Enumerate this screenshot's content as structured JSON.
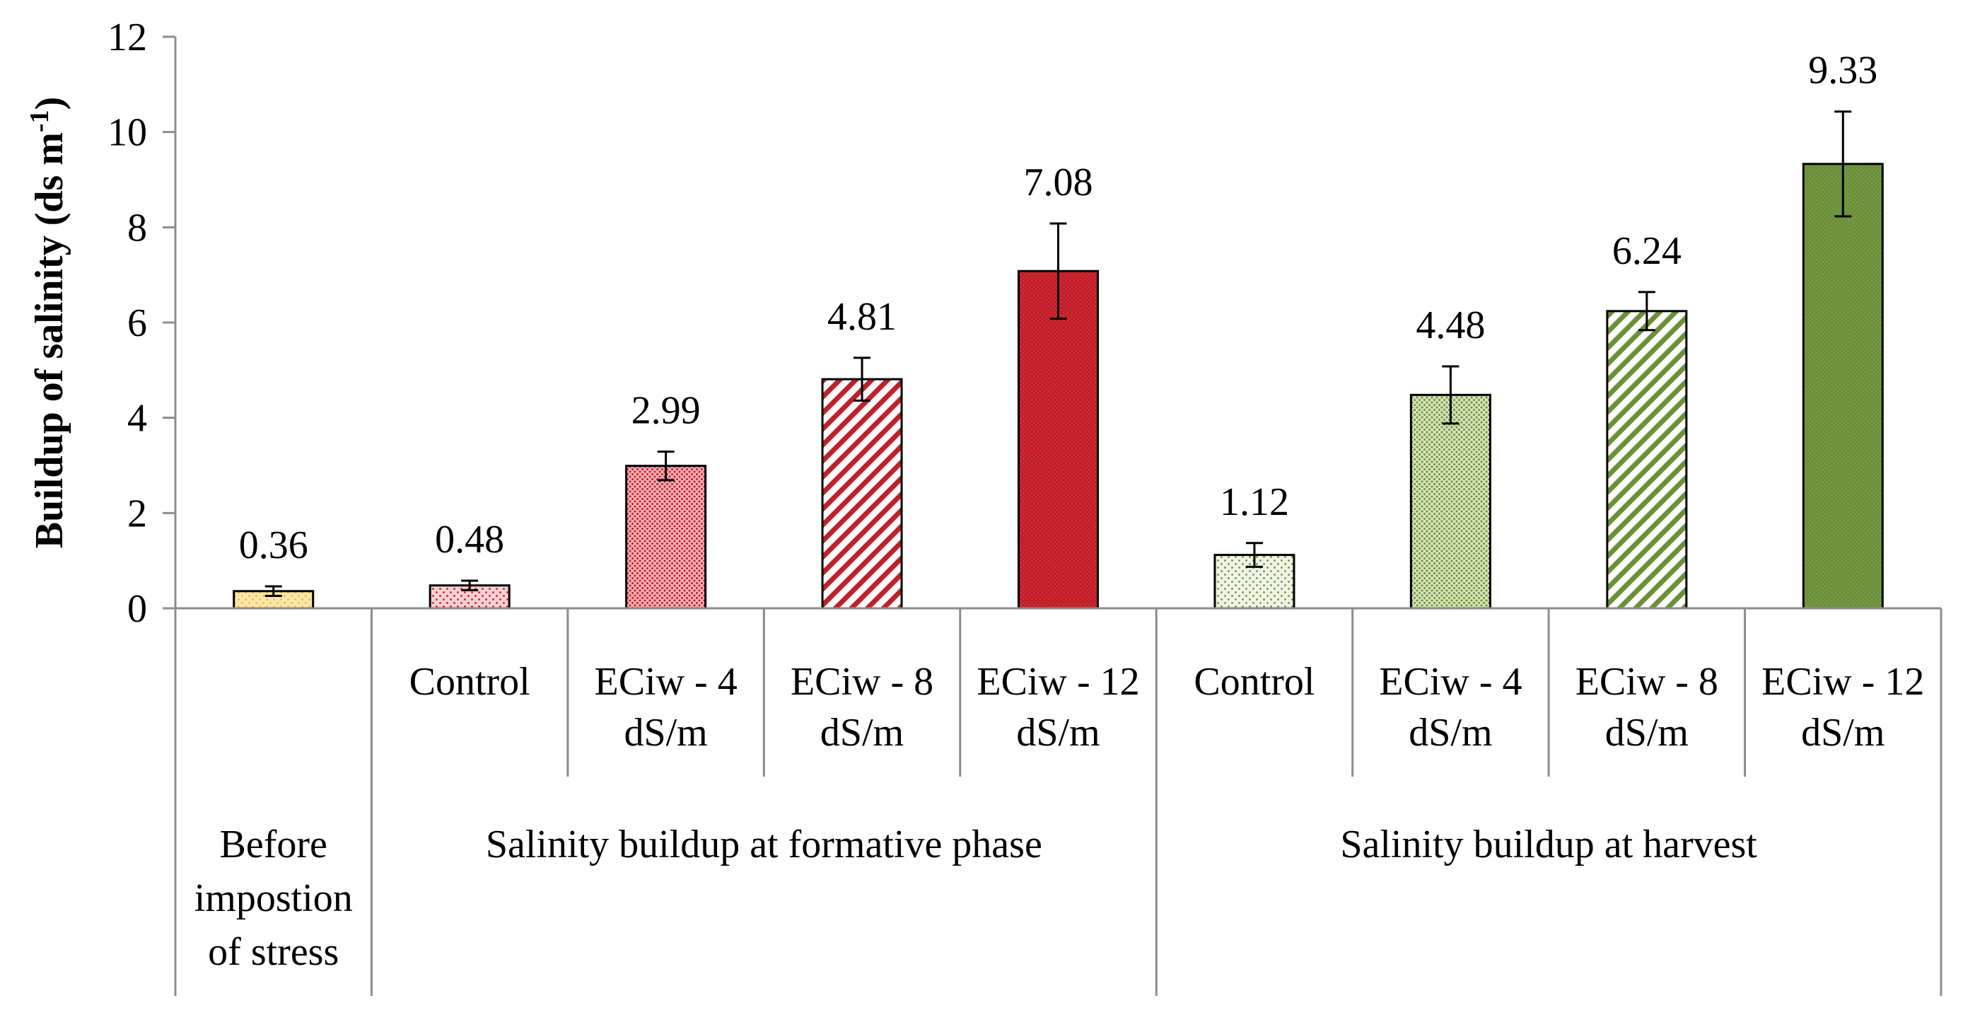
{
  "chart_data": {
    "type": "bar",
    "title": "",
    "xlabel": "",
    "ylabel": "Buildup of salinity (ds m",
    "ylabel_sup": "-1",
    "ylabel_close": ")",
    "ylim": [
      0,
      12
    ],
    "yticks": [
      0,
      2,
      4,
      6,
      8,
      10,
      12
    ],
    "grid": false,
    "bars": [
      {
        "label_lines": [],
        "value": 0.36,
        "value_label": "0.36",
        "err": 0.1,
        "color": "#e8b84a",
        "fill": "#fbe6a8",
        "pattern": "dots-sparse"
      },
      {
        "label_lines": [
          "Control"
        ],
        "value": 0.48,
        "value_label": "0.48",
        "err": 0.1,
        "color": "#c0202a",
        "fill": "#f6d0d2",
        "pattern": "dots-sparse"
      },
      {
        "label_lines": [
          "ECiw - 4",
          "dS/m"
        ],
        "value": 2.99,
        "value_label": "2.99",
        "err": 0.3,
        "color": "#c0202a",
        "fill": "#f3b0b4",
        "pattern": "dots-dense"
      },
      {
        "label_lines": [
          "ECiw - 8",
          "dS/m"
        ],
        "value": 4.81,
        "value_label": "4.81",
        "err": 0.45,
        "color": "#c0202a",
        "fill": "#ffffff",
        "pattern": "diagonal"
      },
      {
        "label_lines": [
          "ECiw - 12",
          "dS/m"
        ],
        "value": 7.08,
        "value_label": "7.08",
        "err": 1.0,
        "color": "#c0202a",
        "fill": "#d8323a",
        "pattern": "grid"
      },
      {
        "label_lines": [
          "Control"
        ],
        "value": 1.12,
        "value_label": "1.12",
        "err": 0.25,
        "color": "#6b8f3a",
        "fill": "#f0f4e6",
        "pattern": "dots-sparse"
      },
      {
        "label_lines": [
          "ECiw - 4",
          "dS/m"
        ],
        "value": 4.48,
        "value_label": "4.48",
        "err": 0.6,
        "color": "#6b8f3a",
        "fill": "#d5e3b8",
        "pattern": "dots-dense"
      },
      {
        "label_lines": [
          "ECiw - 8",
          "dS/m"
        ],
        "value": 6.24,
        "value_label": "6.24",
        "err": 0.4,
        "color": "#6b8f3a",
        "fill": "#ffffff",
        "pattern": "diagonal"
      },
      {
        "label_lines": [
          "ECiw - 12",
          "dS/m"
        ],
        "value": 9.33,
        "value_label": "9.33",
        "err": 1.1,
        "color": "#6b8f3a",
        "fill": "#7fa14c",
        "pattern": "grid"
      }
    ],
    "groups": [
      {
        "label_lines": [
          "Before",
          "impostion",
          "of stress"
        ],
        "start": 0,
        "end": 0
      },
      {
        "label_lines": [
          "Salinity buildup at formative phase"
        ],
        "start": 1,
        "end": 4
      },
      {
        "label_lines": [
          "Salinity buildup at harvest"
        ],
        "start": 5,
        "end": 8
      }
    ]
  }
}
